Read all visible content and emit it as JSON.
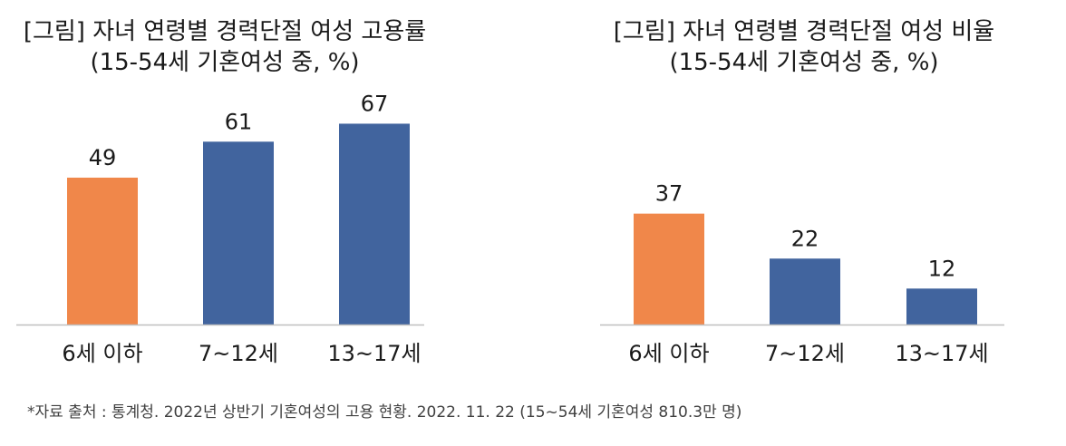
{
  "colors": {
    "highlight": "#F0874A",
    "primary": "#41649E",
    "axis": "#BFBFBF",
    "text": "#1a1a1a"
  },
  "chart_data": [
    {
      "type": "bar",
      "title": "[그림] 자녀 연령별 경력단절 여성 고용률",
      "subtitle": "(15-54세 기혼여성 중, %)",
      "categories": [
        "6세 이하",
        "7~12세",
        "13~17세"
      ],
      "values": [
        49,
        61,
        67
      ],
      "bar_colors": [
        "#F0874A",
        "#41649E",
        "#41649E"
      ],
      "ylim": [
        0,
        75
      ],
      "grid": false,
      "data_labels": true
    },
    {
      "type": "bar",
      "title": "[그림] 자녀 연령별 경력단절 여성 비율",
      "subtitle": "(15-54세 기혼여성 중, %)",
      "categories": [
        "6세 이하",
        "7~12세",
        "13~17세"
      ],
      "values": [
        37,
        22,
        12
      ],
      "bar_colors": [
        "#F0874A",
        "#41649E",
        "#41649E"
      ],
      "ylim": [
        0,
        75
      ],
      "grid": false,
      "data_labels": true
    }
  ],
  "footnote": "*자료 출처 : 통계청. 2022년 상반기 기혼여성의 고용 현황. 2022. 11. 22 (15~54세 기혼여성 810.3만 명)"
}
